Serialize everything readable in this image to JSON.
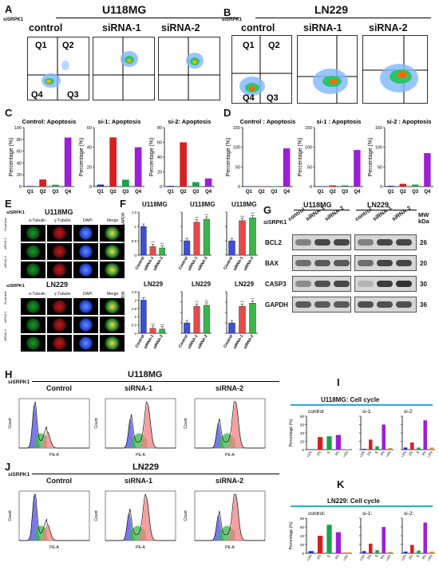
{
  "panel_letters": [
    "A",
    "B",
    "C",
    "D",
    "E",
    "F",
    "G",
    "H",
    "I",
    "J",
    "K"
  ],
  "u118": "U118MG",
  "ln229": "LN229",
  "sisrpk1": "siSRPK1",
  "conds": [
    "control",
    "siRNA-1",
    "siRNA-2"
  ],
  "conds_cap": [
    "Control",
    "siRNA-1",
    "siRNA-2"
  ],
  "quadrants": [
    "Q1",
    "Q2",
    "Q4",
    "Q3"
  ],
  "apop_titles": [
    "Control: Apoptosis",
    "si-1: Apoptosis",
    "si-2: Apoptosis"
  ],
  "apop_titles_d": [
    "Control : Apoptosis",
    "si-1 : Apoptosis",
    "si-2 : Apoptosis"
  ],
  "ylabel_pct": "Percentage (%)",
  "e_headers": [
    "α-Tubulin",
    "γ-Tubulin",
    "DAPI",
    "Merge"
  ],
  "e_rows": [
    "Scramble",
    "siRNA-1",
    "siRNA-2"
  ],
  "f_ylabel": "mRNA(1×10⁻³)/GAPDH",
  "wb_labels": [
    "BCL2",
    "BAX",
    "CASP3",
    "GAPDH"
  ],
  "wb_mw": [
    "26",
    "20",
    "30",
    "36"
  ],
  "wb_mw_header": "MW\nkDa",
  "flow_axis": {
    "x": "PE-A",
    "y": "Count"
  },
  "cc_title_u": "U118MG: Cell cycle",
  "cc_title_l": "LN229: Cell cycle",
  "cc_conds": [
    "control",
    "si-1",
    "si-2"
  ],
  "cc_conds_k": [
    "control:",
    "si-1:",
    "si-2:"
  ],
  "cc_cats": [
    "<2N",
    "2N",
    "S",
    "4N",
    ">4N"
  ],
  "colors": {
    "q1": "#1f2fbf",
    "q2": "#d62020",
    "q3": "#1aa34a",
    "q4": "#9b1fd6",
    "acc": "#2ea8d8"
  },
  "chart_data": [
    {
      "type": "bar",
      "panel": "C",
      "title": "Control: Apoptosis",
      "categories": [
        "Q1",
        "Q2",
        "Q3",
        "Q4"
      ],
      "values": [
        1,
        12,
        3,
        83
      ],
      "ylim": [
        0,
        100
      ],
      "yticks": [
        0,
        20,
        40,
        60,
        80,
        100
      ]
    },
    {
      "type": "bar",
      "panel": "C",
      "title": "si-1: Apoptosis",
      "categories": [
        "Q1",
        "Q2",
        "Q3",
        "Q4"
      ],
      "values": [
        2,
        50,
        7,
        40
      ],
      "ylim": [
        0,
        60
      ],
      "yticks": [
        0,
        20,
        40,
        60
      ]
    },
    {
      "type": "bar",
      "panel": "C",
      "title": "si-2: Apoptosis",
      "categories": [
        "Q1",
        "Q2",
        "Q3",
        "Q4"
      ],
      "values": [
        1,
        60,
        6,
        11
      ],
      "ylim": [
        0,
        80
      ],
      "yticks": [
        0,
        20,
        40,
        60,
        80
      ]
    },
    {
      "type": "bar",
      "panel": "D",
      "title": "Control : Apoptosis",
      "categories": [
        "Q1",
        "Q2",
        "Q3",
        "Q4"
      ],
      "values": [
        0.5,
        1,
        1,
        97
      ],
      "ylim": [
        0,
        150
      ],
      "yticks": [
        0,
        50,
        100,
        150
      ]
    },
    {
      "type": "bar",
      "panel": "D",
      "title": "si-1 : Apoptosis",
      "categories": [
        "Q1",
        "Q2",
        "Q3",
        "Q4"
      ],
      "values": [
        1,
        3,
        3,
        93
      ],
      "ylim": [
        0,
        150
      ],
      "yticks": [
        0,
        50,
        100,
        150
      ]
    },
    {
      "type": "bar",
      "panel": "D",
      "title": "si-2 : Apoptosis",
      "categories": [
        "Q1",
        "Q2",
        "Q3",
        "Q4"
      ],
      "values": [
        2,
        7,
        5,
        85
      ],
      "ylim": [
        0,
        150
      ],
      "yticks": [
        0,
        50,
        100,
        150
      ]
    },
    {
      "type": "bar",
      "panel": "F",
      "title": "U118MG",
      "categories": [
        "Control",
        "siRNA-1",
        "siRNA-2"
      ],
      "values": [
        1.0,
        0.3,
        0.25
      ],
      "ylim": [
        0,
        1.5
      ],
      "yticks": [
        0,
        0.5,
        1.0,
        1.5
      ]
    },
    {
      "type": "bar",
      "panel": "F",
      "title": "U118MG",
      "categories": [
        "Control",
        "siRNA-1",
        "siRNA-2"
      ],
      "values": [
        0.5,
        1.15,
        1.25
      ],
      "ylim": [
        0,
        1.5
      ],
      "yticks": [
        0,
        0.5,
        1.0,
        1.5
      ]
    },
    {
      "type": "bar",
      "panel": "F",
      "title": "U118MG",
      "categories": [
        "Control",
        "siRNA-1",
        "siRNA-2"
      ],
      "values": [
        0.5,
        1.2,
        1.3
      ],
      "ylim": [
        0,
        1.5
      ],
      "yticks": [
        0,
        0.5,
        1.0,
        1.5
      ]
    },
    {
      "type": "bar",
      "panel": "F",
      "title": "LN229",
      "categories": [
        "Control",
        "siRNA-1",
        "siRNA-2"
      ],
      "values": [
        2.0,
        0.3,
        0.25
      ],
      "ylim": [
        0,
        2.5
      ],
      "yticks": [
        0,
        0.5,
        1.0,
        1.5,
        2.0,
        2.5
      ]
    },
    {
      "type": "bar",
      "panel": "F",
      "title": "LN229",
      "categories": [
        "Control",
        "siRNA-1",
        "siRNA-2"
      ],
      "values": [
        0.5,
        1.3,
        1.35
      ],
      "ylim": [
        0,
        2.0
      ],
      "yticks": [
        0,
        0.5,
        1.0,
        1.5,
        2.0
      ]
    },
    {
      "type": "bar",
      "panel": "F",
      "title": "LN229",
      "categories": [
        "Control",
        "siRNA-1",
        "siRNA-2"
      ],
      "values": [
        0.5,
        1.3,
        1.45
      ],
      "ylim": [
        0,
        2.0
      ],
      "yticks": [
        0,
        0.5,
        1.0,
        1.5,
        2.0
      ]
    },
    {
      "type": "bar",
      "panel": "I",
      "title": "control",
      "categories": [
        "<2N",
        "2N",
        "S",
        "4N",
        ">4N"
      ],
      "values": [
        1,
        30,
        32,
        35,
        1
      ],
      "ylim": [
        0,
        80
      ],
      "yticks": [
        0,
        20,
        40,
        60,
        80
      ]
    },
    {
      "type": "bar",
      "panel": "I",
      "title": "si-1",
      "categories": [
        "<2N",
        "2N",
        "S",
        "4N",
        ">4N"
      ],
      "values": [
        2,
        24,
        8,
        60,
        4
      ],
      "ylim": [
        0,
        80
      ],
      "yticks": [
        0,
        20,
        40,
        60,
        80
      ]
    },
    {
      "type": "bar",
      "panel": "I",
      "title": "si-2",
      "categories": [
        "<2N",
        "2N",
        "S",
        "4N",
        ">4N"
      ],
      "values": [
        5,
        17,
        5,
        70,
        5
      ],
      "ylim": [
        0,
        80
      ],
      "yticks": [
        0,
        20,
        40,
        60,
        80
      ]
    },
    {
      "type": "bar",
      "panel": "K",
      "title": "control:",
      "categories": [
        "<2N",
        "2N",
        "S",
        "4N",
        ">4N"
      ],
      "values": [
        5,
        40,
        65,
        48,
        2
      ],
      "ylim": [
        0,
        80
      ],
      "yticks": [
        0,
        20,
        40,
        60,
        80
      ]
    },
    {
      "type": "bar",
      "panel": "K",
      "title": "si-1:",
      "categories": [
        "<2N",
        "2N",
        "S",
        "4N",
        ">4N"
      ],
      "values": [
        5,
        22,
        7,
        60,
        3
      ],
      "ylim": [
        0,
        80
      ],
      "yticks": [
        0,
        20,
        40,
        60,
        80
      ]
    },
    {
      "type": "bar",
      "panel": "K",
      "title": "si-2:",
      "categories": [
        "<2N",
        "2N",
        "S",
        "4N",
        ">4N"
      ],
      "values": [
        4,
        19,
        6,
        70,
        4
      ],
      "ylim": [
        0,
        80
      ],
      "yticks": [
        0,
        20,
        40,
        60,
        80
      ]
    }
  ]
}
